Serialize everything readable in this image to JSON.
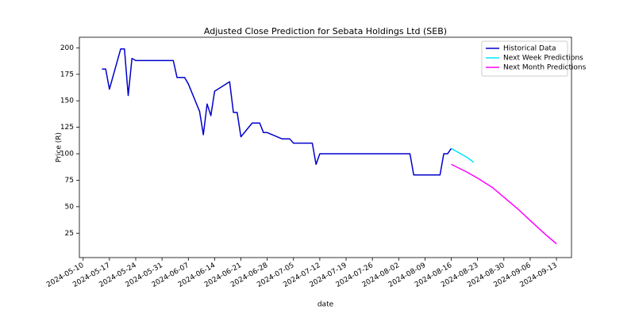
{
  "chart_data": {
    "type": "line",
    "title": "Adjusted Close Prediction for Sebata Holdings Ltd (SEB)",
    "x_label": "date",
    "y_label": "Price (R)",
    "xlim": [
      "2024-05-09",
      "2024-09-17"
    ],
    "xticks": [
      "2024-05-10",
      "2024-05-17",
      "2024-05-24",
      "2024-05-31",
      "2024-06-07",
      "2024-06-14",
      "2024-06-21",
      "2024-06-28",
      "2024-07-05",
      "2024-07-12",
      "2024-07-19",
      "2024-07-26",
      "2024-08-02",
      "2024-08-09",
      "2024-08-16",
      "2024-08-23",
      "2024-08-30",
      "2024-09-06",
      "2024-09-13"
    ],
    "ylim": [
      2,
      210
    ],
    "yticks": [
      25,
      50,
      75,
      100,
      125,
      150,
      175,
      200
    ],
    "legend": "upper right",
    "grid": false,
    "series": [
      {
        "name": "Historical Data",
        "color": "#0000cd",
        "x": [
          "2024-05-15",
          "2024-05-16",
          "2024-05-17",
          "2024-05-20",
          "2024-05-21",
          "2024-05-22",
          "2024-05-23",
          "2024-05-24",
          "2024-06-03",
          "2024-06-04",
          "2024-06-06",
          "2024-06-07",
          "2024-06-10",
          "2024-06-11",
          "2024-06-12",
          "2024-06-13",
          "2024-06-14",
          "2024-06-18",
          "2024-06-19",
          "2024-06-20",
          "2024-06-21",
          "2024-06-24",
          "2024-06-26",
          "2024-06-27",
          "2024-06-28",
          "2024-07-02",
          "2024-07-04",
          "2024-07-05",
          "2024-07-10",
          "2024-07-11",
          "2024-07-12",
          "2024-08-05",
          "2024-08-06",
          "2024-08-13",
          "2024-08-14",
          "2024-08-15",
          "2024-08-16"
        ],
        "values": [
          180,
          180,
          161,
          199,
          199,
          155,
          190,
          188,
          188,
          172,
          172,
          166,
          140,
          118,
          147,
          136,
          159,
          168,
          139,
          139,
          116,
          129,
          129,
          120,
          120,
          114,
          114,
          110,
          110,
          90,
          100,
          100,
          80,
          80,
          100,
          100,
          105
        ]
      },
      {
        "name": "Next Week Predictions",
        "color": "#00e5ff",
        "x": [
          "2024-08-16",
          "2024-08-17",
          "2024-08-18",
          "2024-08-19",
          "2024-08-20",
          "2024-08-21",
          "2024-08-22"
        ],
        "values": [
          105,
          103,
          101,
          99,
          97,
          94.5,
          92
        ]
      },
      {
        "name": "Next Month Predictions",
        "color": "#ff00ff",
        "x": [
          "2024-08-16",
          "2024-08-20",
          "2024-08-23",
          "2024-08-27",
          "2024-08-30",
          "2024-09-03",
          "2024-09-06",
          "2024-09-10",
          "2024-09-13"
        ],
        "values": [
          90,
          83,
          77,
          68,
          59,
          47,
          37,
          24,
          15
        ]
      }
    ]
  }
}
